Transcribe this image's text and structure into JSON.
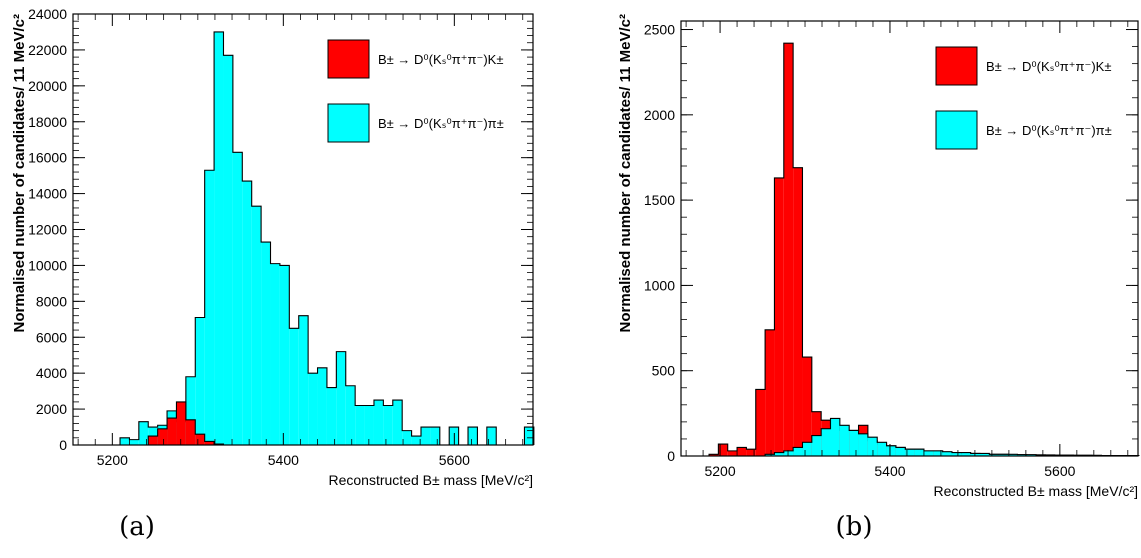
{
  "chart_data": [
    {
      "type": "bar",
      "panel_label": "(a)",
      "xlabel": "Reconstructed B± mass [MeV/c²]",
      "ylabel": "Normalised number of candidates/ 11 MeV/c²",
      "xlim": [
        5154,
        5692
      ],
      "ylim": [
        0,
        24000
      ],
      "bin_width": 11,
      "x_ticks": [
        5200,
        5400,
        5600
      ],
      "x_tick_labels": [
        "5200",
        "5400",
        "5600"
      ],
      "y_ticks": [
        0,
        2000,
        4000,
        6000,
        8000,
        10000,
        12000,
        14000,
        16000,
        18000,
        20000,
        22000,
        24000
      ],
      "y_tick_labels": [
        "0",
        "2000",
        "4000",
        "6000",
        "8000",
        "10000",
        "12000",
        "14000",
        "16000",
        "18000",
        "20000",
        "22000",
        "24000"
      ],
      "grid": false,
      "legend_position": "top-right",
      "draw_order": [
        1,
        0
      ],
      "series": [
        {
          "name": "B± → D⁰(Kₛ⁰π⁺π⁻)K±",
          "color": "#ff0000",
          "bin_edges": [
            5242,
            5253,
            5264,
            5275,
            5286,
            5297,
            5308,
            5319,
            5330
          ],
          "values": [
            500,
            900,
            1500,
            2400,
            1400,
            600,
            200,
            50
          ]
        },
        {
          "name": "B± → D⁰(Kₛ⁰π⁺π⁻)π±",
          "color": "#00ffff",
          "bin_edges": [
            5198,
            5209,
            5220,
            5231,
            5242,
            5253,
            5264,
            5275,
            5286,
            5297,
            5308,
            5319,
            5330,
            5341,
            5352,
            5363,
            5374,
            5385,
            5396,
            5407,
            5418,
            5429,
            5440,
            5451,
            5462,
            5473,
            5484,
            5495,
            5506,
            5517,
            5528,
            5539,
            5550,
            5561,
            5572,
            5583,
            5594,
            5605,
            5616,
            5627,
            5638,
            5649,
            5660,
            5671,
            5682,
            5693
          ],
          "values": [
            0,
            400,
            300,
            1300,
            1000,
            1100,
            1900,
            1300,
            3800,
            7100,
            15300,
            23000,
            21700,
            16300,
            14700,
            13300,
            11300,
            10100,
            10000,
            6500,
            7200,
            4000,
            4300,
            3200,
            5200,
            3300,
            2200,
            2200,
            2500,
            2200,
            2500,
            800,
            500,
            1000,
            1000,
            0,
            1000,
            0,
            1000,
            0,
            1000,
            0,
            0,
            0,
            1000
          ]
        }
      ]
    },
    {
      "type": "bar",
      "panel_label": "(b)",
      "xlabel": "Reconstructed B± mass [MeV/c²]",
      "ylabel": "Normalised number of candidates/ 11 MeV/c²",
      "xlim": [
        5154,
        5692
      ],
      "ylim": [
        0,
        2550
      ],
      "bin_width": 11,
      "x_ticks": [
        5200,
        5400,
        5600
      ],
      "x_tick_labels": [
        "5200",
        "5400",
        "5600"
      ],
      "y_ticks": [
        0,
        500,
        1000,
        1500,
        2000,
        2500
      ],
      "y_tick_labels": [
        "0",
        "500",
        "1000",
        "1500",
        "2000",
        "2500"
      ],
      "grid": false,
      "legend_position": "top-right",
      "draw_order": [
        0,
        1
      ],
      "series": [
        {
          "name": "B± → D⁰(Kₛ⁰π⁺π⁻)K±",
          "color": "#ff0000",
          "bin_edges": [
            5176,
            5187,
            5198,
            5209,
            5220,
            5231,
            5242,
            5253,
            5264,
            5275,
            5286,
            5297,
            5308,
            5319,
            5330,
            5341,
            5352,
            5363,
            5374,
            5385,
            5396,
            5407,
            5418,
            5429,
            5440,
            5451,
            5462,
            5473,
            5484,
            5495,
            5506,
            5517,
            5528,
            5539,
            5550,
            5561,
            5572,
            5583,
            5594,
            5605,
            5616,
            5627,
            5638,
            5649,
            5660,
            5671,
            5682,
            5693
          ],
          "values": [
            0,
            10,
            70,
            30,
            50,
            40,
            390,
            740,
            1630,
            2420,
            1690,
            580,
            260,
            210,
            180,
            150,
            150,
            180,
            90,
            70,
            60,
            50,
            40,
            40,
            30,
            30,
            20,
            20,
            15,
            15,
            10,
            10,
            10,
            8,
            8,
            6,
            6,
            5,
            5,
            5,
            4,
            4,
            3,
            3,
            3,
            3,
            3
          ]
        },
        {
          "name": "B± → D⁰(Kₛ⁰π⁺π⁻)π±",
          "color": "#00ffff",
          "bin_edges": [
            5253,
            5264,
            5275,
            5286,
            5297,
            5308,
            5319,
            5330,
            5341,
            5352,
            5363,
            5374,
            5385,
            5396,
            5407,
            5418,
            5429,
            5440,
            5451,
            5462,
            5473,
            5484,
            5495,
            5506,
            5517,
            5528,
            5539,
            5550,
            5561,
            5572,
            5583,
            5594,
            5605,
            5616,
            5627,
            5638,
            5649,
            5660,
            5671,
            5682,
            5693
          ],
          "values": [
            10,
            20,
            30,
            50,
            80,
            120,
            160,
            220,
            180,
            150,
            130,
            110,
            80,
            60,
            50,
            40,
            40,
            30,
            30,
            25,
            20,
            20,
            15,
            15,
            10,
            10,
            10,
            8,
            8,
            6,
            6,
            5,
            5,
            4,
            4,
            4,
            3,
            3,
            3,
            3
          ]
        }
      ]
    }
  ]
}
